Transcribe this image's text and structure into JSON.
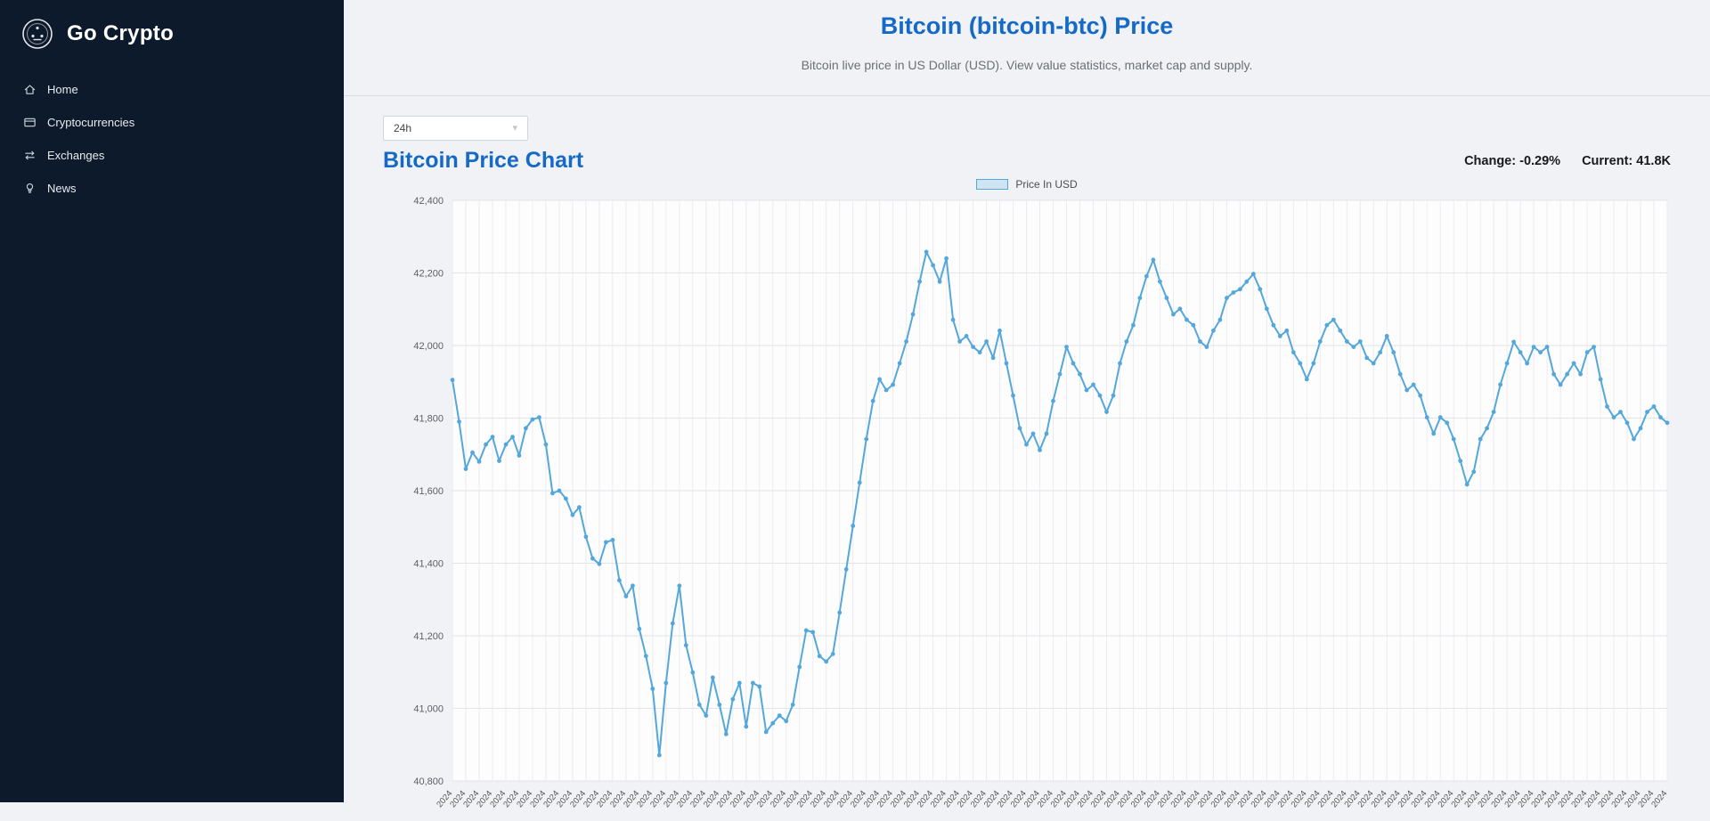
{
  "sidebar": {
    "brand": "Go Crypto",
    "items": [
      {
        "id": "home",
        "label": "Home",
        "icon": "home-icon"
      },
      {
        "id": "cryptocurrencies",
        "label": "Cryptocurrencies",
        "icon": "coins-icon"
      },
      {
        "id": "exchanges",
        "label": "Exchanges",
        "icon": "exchange-icon"
      },
      {
        "id": "news",
        "label": "News",
        "icon": "news-icon"
      }
    ]
  },
  "header": {
    "title": "Bitcoin (bitcoin-btc) Price",
    "subtitle": "Bitcoin live price in US Dollar (USD). View value statistics, market cap and supply."
  },
  "controls": {
    "range_select_value": "24h"
  },
  "chart_section": {
    "heading": "Bitcoin Price Chart",
    "change": {
      "label": "Change:",
      "value": "-0.29%"
    },
    "current": {
      "label": "Current:",
      "value": "41.8K"
    },
    "legend": "Price In USD"
  },
  "colors": {
    "accent": "#1569c7",
    "line": "#54a7da",
    "legend_fill": "#cfe4f3",
    "sidebar_bg": "#0c1a2b"
  },
  "chart_data": {
    "type": "line",
    "title": "Bitcoin Price Chart",
    "xlabel": "",
    "ylabel": "",
    "ylim": [
      40800,
      42400
    ],
    "y_ticks": [
      40800,
      41000,
      41200,
      41400,
      41600,
      41800,
      42000,
      42200,
      42400
    ],
    "grid": true,
    "legend_position": "top-center",
    "legend": [
      "Price In USD"
    ],
    "x_start": "2024-01-22 00:00",
    "x_interval_minutes": 8,
    "x_grid_every": 2,
    "x_tick_display_chars": 4,
    "series": [
      {
        "name": "Price In USD",
        "values": [
          41905,
          41790,
          41660,
          41705,
          41680,
          41727,
          41748,
          41682,
          41727,
          41748,
          41697,
          41772,
          41796,
          41802,
          41727,
          41593,
          41600,
          41578,
          41533,
          41554,
          41473,
          41413,
          41398,
          41458,
          41464,
          41353,
          41309,
          41338,
          41219,
          41144,
          41054,
          40871,
          41070,
          41234,
          41338,
          41174,
          41099,
          41010,
          40980,
          41085,
          41010,
          40929,
          41025,
          41070,
          40950,
          41070,
          41060,
          40935,
          40959,
          40980,
          40965,
          41010,
          41114,
          41215,
          41210,
          41144,
          41129,
          41150,
          41264,
          41383,
          41503,
          41622,
          41742,
          41847,
          41907,
          41877,
          41892,
          41951,
          42011,
          42086,
          42176,
          42258,
          42221,
          42176,
          42240,
          42071,
          42011,
          42026,
          41996,
          41981,
          42011,
          41966,
          42041,
          41951,
          41862,
          41772,
          41727,
          41757,
          41712,
          41757,
          41847,
          41921,
          41996,
          41951,
          41921,
          41877,
          41892,
          41862,
          41817,
          41862,
          41951,
          42011,
          42056,
          42131,
          42191,
          42236,
          42176,
          42131,
          42086,
          42101,
          42071,
          42056,
          42011,
          41996,
          42041,
          42071,
          42131,
          42146,
          42155,
          42176,
          42197,
          42155,
          42101,
          42056,
          42026,
          42041,
          41981,
          41951,
          41907,
          41951,
          42011,
          42056,
          42071,
          42041,
          42011,
          41996,
          42011,
          41966,
          41951,
          41981,
          42026,
          41981,
          41921,
          41877,
          41892,
          41862,
          41802,
          41757,
          41802,
          41787,
          41742,
          41682,
          41617,
          41652,
          41742,
          41772,
          41817,
          41892,
          41951,
          42010,
          41981,
          41951,
          41996,
          41981,
          41996,
          41921,
          41892,
          41921,
          41951,
          41921,
          41981,
          41996,
          41907,
          41832,
          41802,
          41817,
          41787,
          41742,
          41772,
          41817,
          41832,
          41802,
          41787
        ]
      }
    ]
  }
}
